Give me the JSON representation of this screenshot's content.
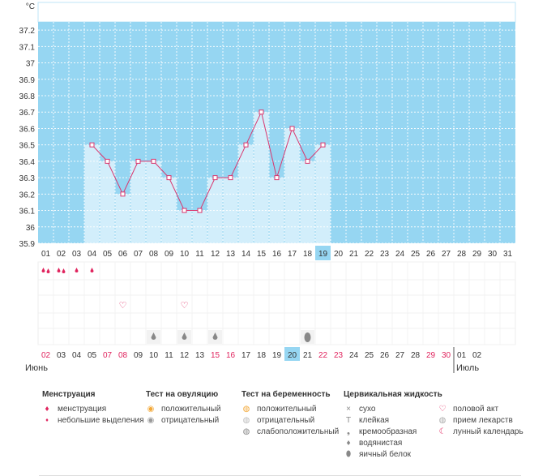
{
  "chart_data": {
    "type": "line",
    "unit_label": "°C",
    "ylim": [
      35.9,
      37.25
    ],
    "y_ticks": [
      "35.9",
      "36",
      "36.1",
      "36.2",
      "36.3",
      "36.4",
      "36.5",
      "36.6",
      "36.7",
      "36.8",
      "36.9",
      "37",
      "37.1",
      "37.2"
    ],
    "days_top": [
      "01",
      "02",
      "03",
      "04",
      "05",
      "06",
      "07",
      "08",
      "09",
      "10",
      "11",
      "12",
      "13",
      "14",
      "15",
      "16",
      "17",
      "18",
      "19",
      "20",
      "21",
      "22",
      "23",
      "24",
      "25",
      "26",
      "27",
      "28",
      "29",
      "30",
      "31"
    ],
    "temperatures": [
      null,
      null,
      null,
      36.5,
      36.4,
      36.2,
      36.4,
      36.4,
      36.3,
      36.1,
      36.1,
      36.3,
      36.3,
      36.5,
      36.7,
      36.3,
      36.6,
      36.4,
      36.5,
      null,
      null,
      null,
      null,
      null,
      null,
      null,
      null,
      null,
      null,
      null,
      null
    ],
    "highlight_top_index": 18,
    "days_bottom": [
      "02",
      "03",
      "04",
      "05",
      "07",
      "08",
      "09",
      "10",
      "11",
      "12",
      "13",
      "15",
      "16",
      "17",
      "18",
      "19",
      "20",
      "21",
      "22",
      "23",
      "24",
      "25",
      "26",
      "27",
      "28",
      "29",
      "30",
      "01",
      "02"
    ],
    "days_bottom_red": [
      true,
      false,
      false,
      false,
      true,
      true,
      false,
      false,
      false,
      false,
      false,
      true,
      true,
      false,
      false,
      false,
      false,
      false,
      true,
      true,
      false,
      false,
      false,
      false,
      false,
      true,
      true,
      false,
      false
    ],
    "highlight_bottom_index": 16,
    "month_left": "Июнь",
    "month_right": "Июль",
    "menstruation": [
      "menstruation",
      "menstruation",
      "spotting",
      "spotting",
      null,
      null,
      null,
      null,
      null,
      null,
      null,
      null,
      null,
      null,
      null,
      null,
      null,
      null,
      null,
      null,
      null,
      null,
      null,
      null,
      null,
      null,
      null,
      null,
      null,
      null,
      null
    ],
    "intercourse": [
      null,
      null,
      null,
      null,
      null,
      true,
      null,
      null,
      null,
      true,
      null,
      null,
      null,
      null,
      null,
      null,
      null,
      null,
      null,
      null,
      null,
      null,
      null,
      null,
      null,
      null,
      null,
      null,
      null,
      null,
      null
    ],
    "cervical": [
      null,
      null,
      null,
      null,
      null,
      null,
      null,
      "watery",
      null,
      "watery",
      null,
      "watery",
      null,
      null,
      null,
      null,
      null,
      "egg-white",
      null,
      null,
      null,
      null,
      null,
      null,
      null,
      null,
      null,
      null,
      null,
      null,
      null
    ]
  },
  "legend": {
    "menstruation": {
      "title": "Менструация",
      "items": [
        "менструация",
        "небольшие выделения"
      ]
    },
    "ovulation": {
      "title": "Тест на овуляцию",
      "items": [
        "положительный",
        "отрицательный"
      ]
    },
    "pregnancy": {
      "title": "Тест на беременность",
      "items": [
        "положительный",
        "отрицательный",
        "слабоположительный"
      ]
    },
    "cervical": {
      "title": "Цервикальная жидкость",
      "items": [
        "сухо",
        "клейкая",
        "кремообразная",
        "водянистая",
        "яичный белок"
      ]
    },
    "other": {
      "items": [
        "половой акт",
        "прием лекарств",
        "лунный календарь"
      ]
    }
  },
  "colors": {
    "band": "#96d6f2",
    "bar": "#d2eefb",
    "line": "#d9366e",
    "red": "#e0245e",
    "highlight": "#96d6f2"
  }
}
